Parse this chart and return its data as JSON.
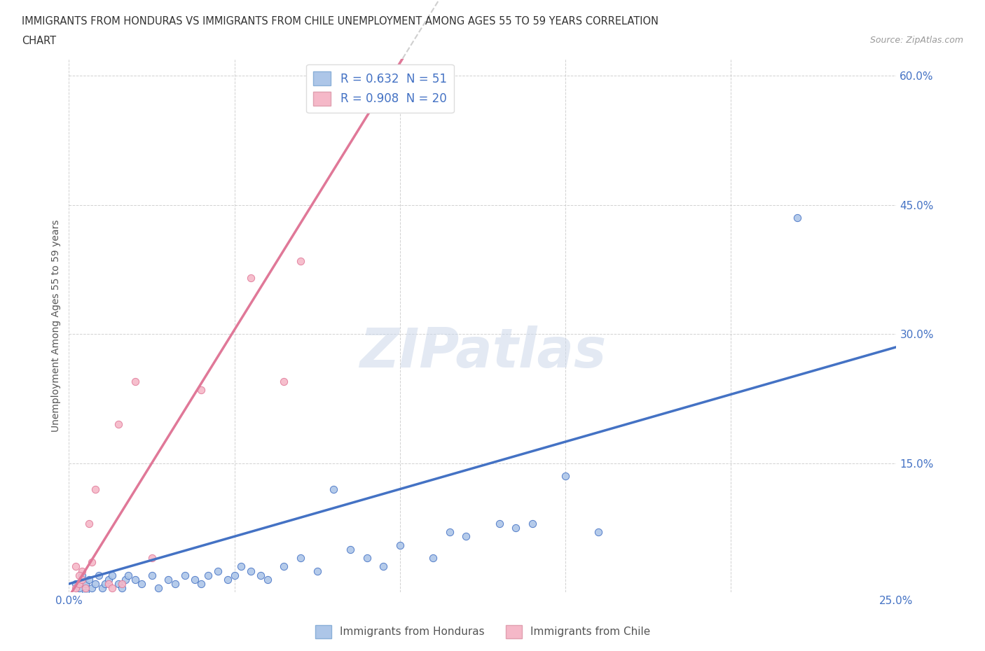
{
  "title_line1": "IMMIGRANTS FROM HONDURAS VS IMMIGRANTS FROM CHILE UNEMPLOYMENT AMONG AGES 55 TO 59 YEARS CORRELATION",
  "title_line2": "CHART",
  "source": "Source: ZipAtlas.com",
  "ylabel": "Unemployment Among Ages 55 to 59 years",
  "xlim": [
    0.0,
    0.25
  ],
  "ylim": [
    0.0,
    0.62
  ],
  "xticks": [
    0.0,
    0.05,
    0.1,
    0.15,
    0.2,
    0.25
  ],
  "yticks": [
    0.0,
    0.15,
    0.3,
    0.45,
    0.6
  ],
  "watermark": "ZIPatlas",
  "blue_scatter": [
    [
      0.002,
      0.01
    ],
    [
      0.003,
      0.005
    ],
    [
      0.004,
      0.02
    ],
    [
      0.005,
      0.01
    ],
    [
      0.006,
      0.015
    ],
    [
      0.007,
      0.005
    ],
    [
      0.008,
      0.01
    ],
    [
      0.009,
      0.02
    ],
    [
      0.01,
      0.005
    ],
    [
      0.011,
      0.01
    ],
    [
      0.012,
      0.015
    ],
    [
      0.013,
      0.02
    ],
    [
      0.015,
      0.01
    ],
    [
      0.016,
      0.005
    ],
    [
      0.017,
      0.015
    ],
    [
      0.018,
      0.02
    ],
    [
      0.02,
      0.015
    ],
    [
      0.022,
      0.01
    ],
    [
      0.025,
      0.02
    ],
    [
      0.027,
      0.005
    ],
    [
      0.03,
      0.015
    ],
    [
      0.032,
      0.01
    ],
    [
      0.035,
      0.02
    ],
    [
      0.038,
      0.015
    ],
    [
      0.04,
      0.01
    ],
    [
      0.042,
      0.02
    ],
    [
      0.045,
      0.025
    ],
    [
      0.048,
      0.015
    ],
    [
      0.05,
      0.02
    ],
    [
      0.052,
      0.03
    ],
    [
      0.055,
      0.025
    ],
    [
      0.058,
      0.02
    ],
    [
      0.06,
      0.015
    ],
    [
      0.065,
      0.03
    ],
    [
      0.07,
      0.04
    ],
    [
      0.075,
      0.025
    ],
    [
      0.08,
      0.12
    ],
    [
      0.085,
      0.05
    ],
    [
      0.09,
      0.04
    ],
    [
      0.095,
      0.03
    ],
    [
      0.1,
      0.055
    ],
    [
      0.11,
      0.04
    ],
    [
      0.115,
      0.07
    ],
    [
      0.12,
      0.065
    ],
    [
      0.13,
      0.08
    ],
    [
      0.135,
      0.075
    ],
    [
      0.14,
      0.08
    ],
    [
      0.15,
      0.135
    ],
    [
      0.16,
      0.07
    ],
    [
      0.22,
      0.435
    ],
    [
      0.005,
      0.0
    ]
  ],
  "pink_scatter": [
    [
      0.002,
      0.005
    ],
    [
      0.003,
      0.01
    ],
    [
      0.004,
      0.025
    ],
    [
      0.005,
      0.005
    ],
    [
      0.006,
      0.08
    ],
    [
      0.007,
      0.035
    ],
    [
      0.008,
      0.12
    ],
    [
      0.012,
      0.01
    ],
    [
      0.013,
      0.005
    ],
    [
      0.015,
      0.195
    ],
    [
      0.016,
      0.01
    ],
    [
      0.02,
      0.245
    ],
    [
      0.025,
      0.04
    ],
    [
      0.04,
      0.235
    ],
    [
      0.055,
      0.365
    ],
    [
      0.065,
      0.245
    ],
    [
      0.07,
      0.385
    ],
    [
      0.002,
      0.03
    ],
    [
      0.003,
      0.02
    ],
    [
      0.004,
      0.015
    ]
  ],
  "blue_line_color": "#4472c4",
  "pink_line_color": "#e07898",
  "blue_scatter_color": "#adc6e8",
  "pink_scatter_color": "#f5b8c8",
  "grid_color": "#cccccc",
  "background_color": "#ffffff",
  "blue_R": 0.632,
  "blue_N": 51,
  "pink_R": 0.908,
  "pink_N": 20,
  "pink_line_slope": 6.2,
  "pink_line_intercept": -0.005,
  "blue_line_slope": 1.1,
  "blue_line_intercept": 0.01
}
